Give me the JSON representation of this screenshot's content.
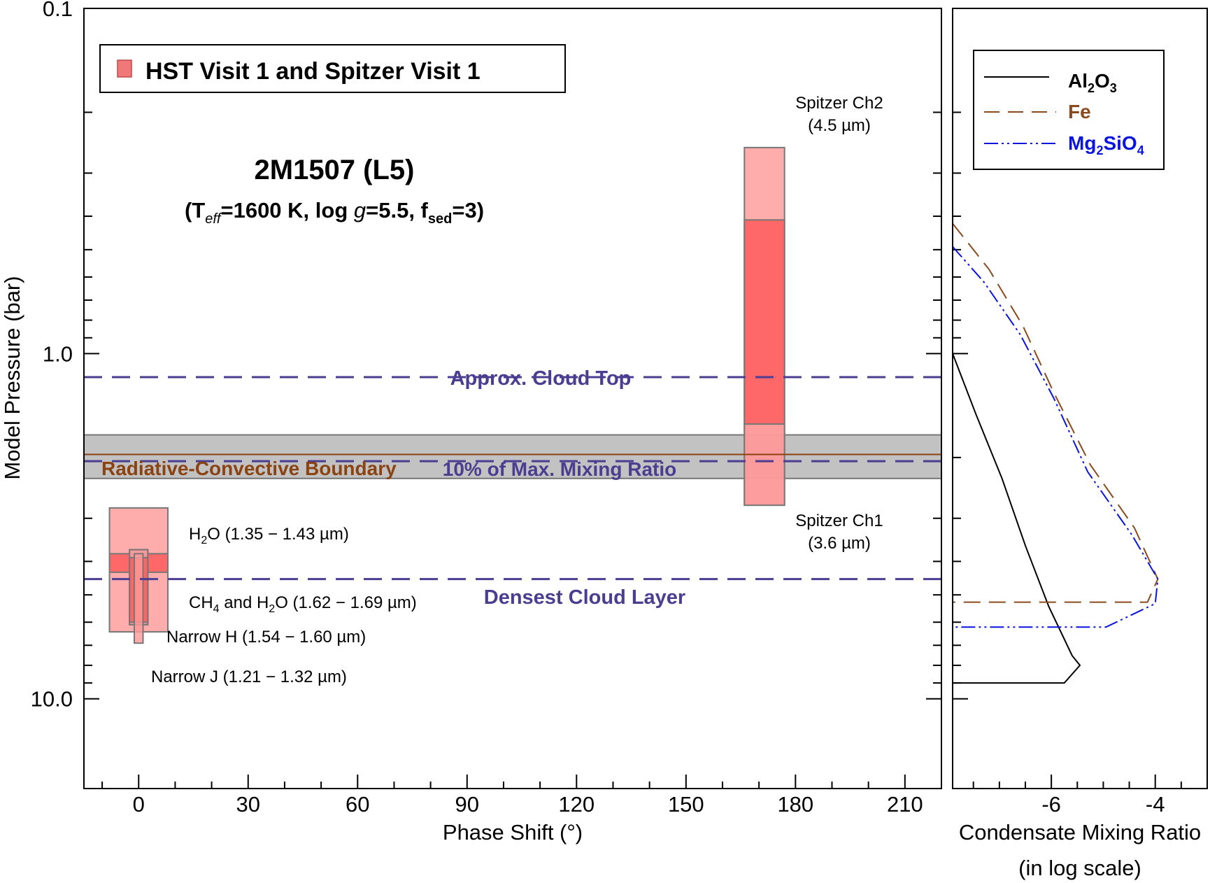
{
  "chart_data": [
    {
      "type": "range",
      "panel": "left",
      "xlabel": "Phase Shift (°)",
      "ylabel": "Model Pressure (bar)",
      "xlim": [
        -15,
        220
      ],
      "ylim": [
        0.1,
        18.2
      ],
      "yscale": "log",
      "x_ticks": [
        0,
        30,
        60,
        90,
        120,
        150,
        180,
        210
      ],
      "x_tick_labels": [
        "0",
        "30",
        "60",
        "90",
        "120",
        "150",
        "180",
        "210"
      ],
      "y_ticks": [
        0.1,
        1.0,
        10.0
      ],
      "y_tick_labels": [
        "0.1",
        "1.0",
        "10.0"
      ],
      "title": "2M1507 (L5)",
      "subtitle": {
        "open": "(T",
        "teff_sub": "eff",
        "mid1": "=1600 K, log ",
        "g": "g",
        "mid2": "=5.5, f",
        "fsed_sub": "sed",
        "close": "=3)"
      },
      "legend": {
        "label": "HST Visit 1 and Spitzer Visit 1",
        "color": "#f07878",
        "position": "top-left"
      },
      "colors": {
        "band_light": "#fe9a9a",
        "band_dark": "#fe5c5c",
        "band_stroke": "#777777",
        "cloud_line": "#4b3d90",
        "rcb_line": "#8a4413",
        "rcb_fill": "#c2c2c2"
      },
      "reference_lines": [
        {
          "name": "Approx. Cloud Top",
          "pressure": 1.17
        },
        {
          "name": "10% of Max. Mixing Ratio",
          "pressure": 2.05
        },
        {
          "name": "Densest Cloud Layer",
          "pressure": 4.5
        }
      ],
      "boundary": {
        "name": "Radiative-Convective Boundary",
        "pressure": 1.96,
        "band": [
          1.72,
          2.3
        ]
      },
      "bands": [
        {
          "name": "Spitzer Ch2",
          "wavelength": "(4.5 µm)",
          "x_range": [
            166,
            177
          ],
          "outer": [
            0.253,
            2.75
          ],
          "inner": [
            0.41,
            1.6
          ]
        },
        {
          "name": "Spitzer Ch1",
          "wavelength": "(3.6 µm)",
          "x_range": [
            166,
            177
          ],
          "outer": [
            1.6,
            2.75
          ],
          "inner": null
        },
        {
          "name": "H2O",
          "label_text": "(1.35 − 1.43 µm)",
          "x_range": [
            -8,
            8
          ],
          "outer": [
            2.8,
            6.4
          ],
          "inner": [
            3.8,
            4.3
          ]
        },
        {
          "name": "CH4 and H2O",
          "label_text": "(1.62 − 1.69 µm)",
          "x_range": [
            -2.5,
            2.5
          ],
          "outer": [
            3.7,
            6.1
          ],
          "inner": null
        },
        {
          "name": "Narrow H",
          "label_text": "Narrow H (1.54 − 1.60 µm)",
          "x_range": [
            -2.5,
            2.5
          ],
          "outer": [
            3.7,
            6.1
          ],
          "inner": [
            3.9,
            6.0
          ]
        },
        {
          "name": "Narrow J",
          "label_text": "Narrow J (1.21 − 1.32 µm)",
          "x_range": [
            -1.2,
            1.2
          ],
          "outer": [
            3.8,
            6.9
          ],
          "inner": null
        }
      ],
      "band_labels": {
        "ch2_name": "Spitzer Ch2",
        "ch2_wave": "(4.5 µm)",
        "ch1_name": "Spitzer Ch1",
        "ch1_wave": "(3.6 µm)",
        "h2o_main": "H",
        "h2o_sub": "2",
        "h2o_rest": "O (1.35 − 1.43 µm)",
        "ch4_a": "CH",
        "ch4_sub": "4",
        "ch4_b": " and H",
        "ch4_sub2": "2",
        "ch4_c": "O (1.62 − 1.69 µm)",
        "narrow_h": "Narrow H (1.54 − 1.60 µm)",
        "narrow_j": "Narrow J (1.21 − 1.32 µm)"
      }
    },
    {
      "type": "line",
      "panel": "right",
      "xlabel": "Condensate Mixing Ratio",
      "xlabel_line2": "(in log scale)",
      "xlim": [
        -7.9,
        -3.0
      ],
      "x_ticks": [
        -6,
        -4
      ],
      "x_tick_labels": [
        "-6",
        "-4"
      ],
      "legend": {
        "al2o3": {
          "a": "Al",
          "s1": "2",
          "b": "O",
          "s2": "3"
        },
        "fe": "Fe",
        "mg2sio4": {
          "a": "Mg",
          "s1": "2",
          "b": "SiO",
          "s2": "4"
        }
      },
      "series": [
        {
          "name": "Al2O3",
          "color": "#000000",
          "dash": "solid",
          "points": [
            [
              -7.9,
              1.0
            ],
            [
              -7.45,
              1.5
            ],
            [
              -6.95,
              2.3
            ],
            [
              -6.5,
              3.6
            ],
            [
              -6.05,
              5.4
            ],
            [
              -5.6,
              7.5
            ],
            [
              -5.45,
              8.0
            ],
            [
              -5.75,
              9.0
            ],
            [
              -7.9,
              9.0
            ]
          ]
        },
        {
          "name": "Fe",
          "color": "#8a4a1d",
          "dash": "long",
          "points": [
            [
              -7.9,
              0.42
            ],
            [
              -7.2,
              0.57
            ],
            [
              -6.55,
              0.83
            ],
            [
              -5.95,
              1.3
            ],
            [
              -5.25,
              2.1
            ],
            [
              -4.4,
              3.2
            ],
            [
              -3.95,
              4.5
            ],
            [
              -4.15,
              5.25
            ],
            [
              -7.9,
              5.25
            ]
          ]
        },
        {
          "name": "Mg2SiO4",
          "color": "#0a14e0",
          "dash": "dash-dot",
          "points": [
            [
              -7.9,
              0.49
            ],
            [
              -7.3,
              0.62
            ],
            [
              -6.6,
              0.88
            ],
            [
              -5.95,
              1.35
            ],
            [
              -5.3,
              2.2
            ],
            [
              -4.45,
              3.35
            ],
            [
              -3.95,
              4.5
            ],
            [
              -4.0,
              5.3
            ],
            [
              -4.95,
              6.2
            ],
            [
              -7.9,
              6.2
            ]
          ]
        }
      ]
    }
  ]
}
